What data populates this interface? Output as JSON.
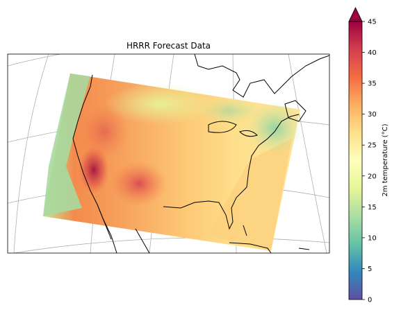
{
  "map": {
    "title": "HRRR Forecast Data",
    "projection": "Lambert conformal",
    "field": "2m temperature",
    "colormap": "Spectral_r"
  },
  "colorbar": {
    "label": "2m temperature (°C)",
    "ticks": [
      "0",
      "5",
      "10",
      "15",
      "20",
      "25",
      "30",
      "35",
      "40",
      "45"
    ],
    "vmin": 0,
    "vmax": 45,
    "extend": "max",
    "stops": [
      "#5e4fa2",
      "#3288bd",
      "#66c2a5",
      "#abdda4",
      "#e6f598",
      "#ffffbf",
      "#fee08b",
      "#fdae61",
      "#f46d43",
      "#d53e4f",
      "#9e0142"
    ]
  }
}
